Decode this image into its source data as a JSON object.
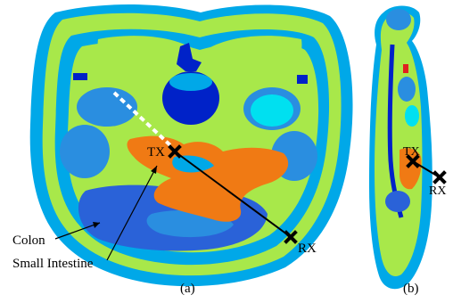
{
  "figure": {
    "panel_a": {
      "tx_label": "TX",
      "rx_label": "RX",
      "colon_label": "Colon",
      "small_intestine_label": "Small Intestine",
      "caption": "(a)"
    },
    "panel_b": {
      "tx_label": "TX",
      "rx_label": "RX",
      "caption": "(b)"
    }
  },
  "colors": {
    "outer_tissue": "#00a8e8",
    "fat": "#a8e84a",
    "muscle": "#2a8ee0",
    "organ_dark_blue": "#0022c8",
    "organ_cyan": "#00e0f0",
    "intestine_orange": "#f07a14",
    "colon_blue": "#2a62d8",
    "marker": "#000000"
  }
}
